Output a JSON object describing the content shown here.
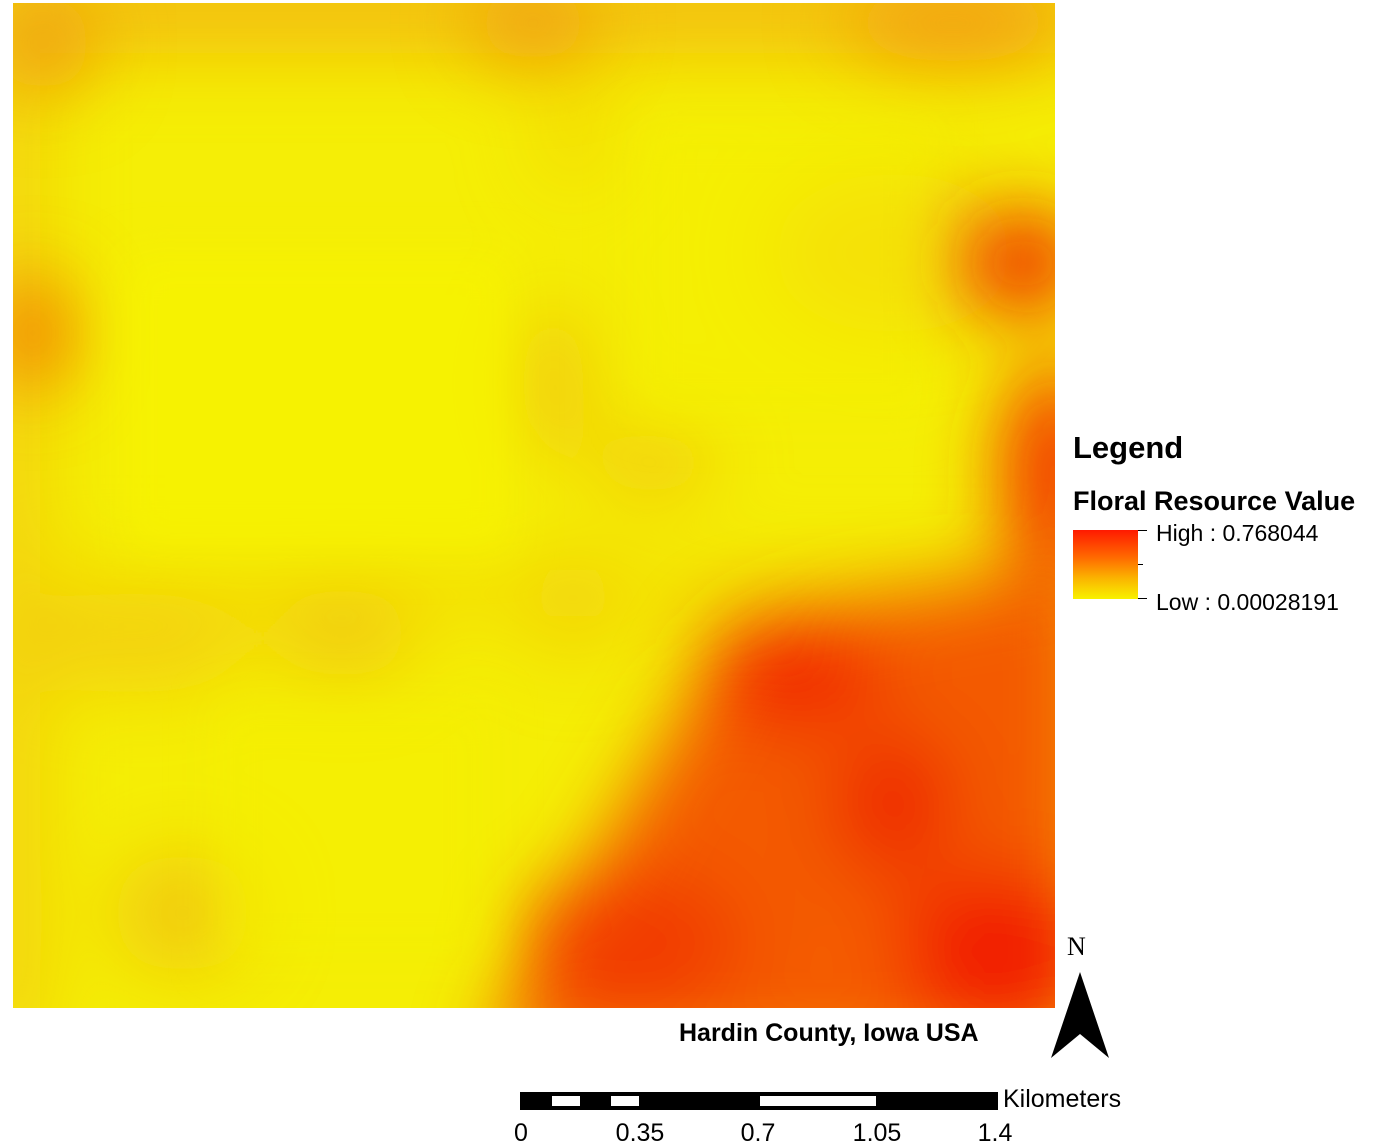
{
  "legend": {
    "title": "Legend",
    "layer_name": "Floral Resource Value",
    "high_label": "High : 0.768044",
    "low_label": "Low : 0.00028191",
    "high_color": "#ff1a00",
    "low_color": "#f8f200"
  },
  "map": {
    "place_label": "Hardin County, Iowa USA",
    "base_color": "#f5ee06"
  },
  "north_arrow": {
    "label": "N"
  },
  "scale_bar": {
    "units": "Kilometers",
    "ticks": [
      "0",
      "0.35",
      "0.7",
      "1.05",
      "1.4"
    ]
  }
}
